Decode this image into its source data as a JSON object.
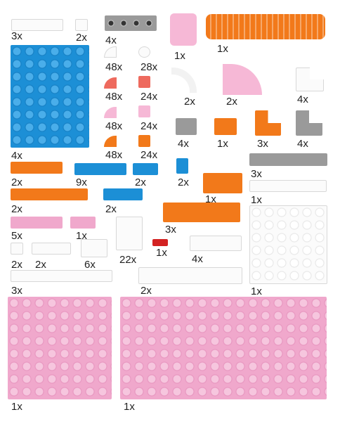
{
  "colors": {
    "blue": "#1c8fd6",
    "pink": "#f0a8cc",
    "orange": "#f2791a",
    "white": "#fbfbfb",
    "gray": "#9a9a9a",
    "red": "#d32222",
    "salmon": "#ee6a5e"
  },
  "parts": [
    {
      "id": "white-tile-1x4",
      "count": "3x"
    },
    {
      "id": "white-tile-1x1",
      "count": "2x"
    },
    {
      "id": "gray-plate-1x4-holes",
      "count": "4x"
    },
    {
      "id": "pink-brick-2x2",
      "count": "1x"
    },
    {
      "id": "orange-brick-separator",
      "count": "1x"
    },
    {
      "id": "blue-plate-6x8",
      "count": "4x"
    },
    {
      "id": "white-slope-quarter",
      "count": "48x"
    },
    {
      "id": "white-round-tile",
      "count": "28x"
    },
    {
      "id": "salmon-slope-quarter",
      "count": "48x"
    },
    {
      "id": "salmon-tile-1x1",
      "count": "24x"
    },
    {
      "id": "white-pipe-corner",
      "count": "2x"
    },
    {
      "id": "pink-quarter-round",
      "count": "2x"
    },
    {
      "id": "white-corner-plate",
      "count": "4x"
    },
    {
      "id": "pink-slope-quarter",
      "count": "48x"
    },
    {
      "id": "pink-tile-1x1",
      "count": "24x"
    },
    {
      "id": "orange-slope-quarter",
      "count": "48x"
    },
    {
      "id": "orange-tile-1x1",
      "count": "24x"
    },
    {
      "id": "gray-brick-1x2",
      "count": "4x"
    },
    {
      "id": "orange-brick-1x2",
      "count": "1x"
    },
    {
      "id": "orange-corner-brick",
      "count": "3x"
    },
    {
      "id": "gray-corner-plate",
      "count": "4x"
    },
    {
      "id": "orange-plate-1x4",
      "count": "2x"
    },
    {
      "id": "blue-tile-1x4",
      "count": "9x"
    },
    {
      "id": "blue-tile-1x2",
      "count": "2x"
    },
    {
      "id": "blue-clip-1x1",
      "count": "2x"
    },
    {
      "id": "orange-brick-2x3",
      "count": "1x"
    },
    {
      "id": "gray-tile-1x8",
      "count": "3x"
    },
    {
      "id": "orange-plate-1x6",
      "count": "2x"
    },
    {
      "id": "blue-slope-1x3",
      "count": "2x"
    },
    {
      "id": "white-tile-1x6",
      "count": "1x"
    },
    {
      "id": "orange-plate-2x6",
      "count": "3x"
    },
    {
      "id": "pink-plate-1x4",
      "count": "5x"
    },
    {
      "id": "pink-plate-1x2",
      "count": "1x"
    },
    {
      "id": "white-panel-1x2x2",
      "count": "22x"
    },
    {
      "id": "white-plate-6x6",
      "count": "1x"
    },
    {
      "id": "white-plate-1x1",
      "count": "2x"
    },
    {
      "id": "white-plate-1x3",
      "count": "2x"
    },
    {
      "id": "white-brick-1x2",
      "count": "6x"
    },
    {
      "id": "red-bar-holder",
      "count": "1x"
    },
    {
      "id": "white-plate-1x4",
      "count": "4x"
    },
    {
      "id": "white-plate-1x8",
      "count": "3x"
    },
    {
      "id": "white-plate-1x8-long",
      "count": "2x"
    },
    {
      "id": "pink-plate-8x8",
      "count": "1x"
    },
    {
      "id": "pink-plate-8x16",
      "count": "1x"
    }
  ]
}
